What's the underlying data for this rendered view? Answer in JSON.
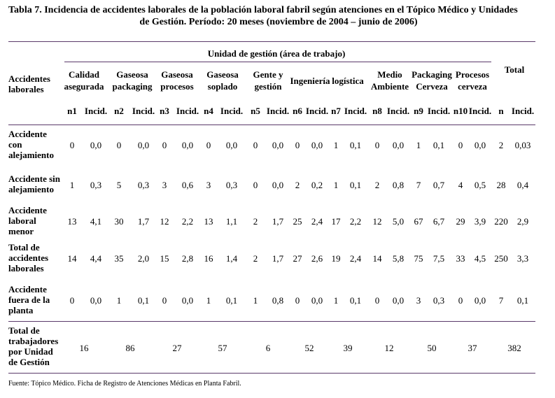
{
  "title_line1": "Tabla 7. Incidencia de accidentes laborales de la población laboral fabril según atenciones en el Tópico Médico y Unidades",
  "title_line2": "de Gestión. Período: 20 meses (noviembre de 2004 – junio de 2006)",
  "header": {
    "group_label": "Unidad de gestión (área de trabajo)",
    "row_header": [
      "Accidentes",
      "laborales"
    ],
    "total_label": "Total",
    "units": [
      [
        "Calidad",
        "asegurada"
      ],
      [
        "Gaseosa",
        "packaging"
      ],
      [
        "Gaseosa",
        "procesos"
      ],
      [
        "Gaseosa",
        "soplado"
      ],
      [
        "Gente y",
        "gestión"
      ],
      [
        "Ingeniería",
        ""
      ],
      [
        "logística",
        ""
      ],
      [
        "Medio",
        "Ambiente"
      ],
      [
        "Packaging",
        "Cerveza"
      ],
      [
        "Procesos",
        "cerveza"
      ]
    ],
    "subcols": [
      "n1",
      "Incid.",
      "n2",
      "Incid.",
      "n3",
      "Incid.",
      "n4",
      "Incid.",
      "n5",
      "Incid.",
      "n6",
      "Incid.",
      "n7",
      "Incid.",
      "n8",
      "Incid.",
      "n9",
      "Incid.",
      "n10",
      "Incid.",
      "n",
      "Incid."
    ]
  },
  "rows": [
    {
      "label": [
        "Accidente",
        "con",
        "alejamiento"
      ],
      "values": [
        "0",
        "0,0",
        "0",
        "0,0",
        "0",
        "0,0",
        "0",
        "0,0",
        "0",
        "0,0",
        "0",
        "0,0",
        "1",
        "0,1",
        "0",
        "0,0",
        "1",
        "0,1",
        "0",
        "0,0",
        "2",
        "0,03"
      ]
    },
    {
      "label": [
        "Accidente sin",
        "alejamiento"
      ],
      "values": [
        "1",
        "0,3",
        "5",
        "0,3",
        "3",
        "0,6",
        "3",
        "0,3",
        "0",
        "0,0",
        "2",
        "0,2",
        "1",
        "0,1",
        "2",
        "0,8",
        "7",
        "0,7",
        "4",
        "0,5",
        "28",
        "0,4"
      ]
    },
    {
      "label": [
        "Accidente",
        "laboral",
        "menor"
      ],
      "values": [
        "13",
        "4,1",
        "30",
        "1,7",
        "12",
        "2,2",
        "13",
        "1,1",
        "2",
        "1,7",
        "25",
        "2,4",
        "17",
        "2,2",
        "12",
        "5,0",
        "67",
        "6,7",
        "29",
        "3,9",
        "220",
        "2,9"
      ]
    },
    {
      "label": [
        "Total de",
        "accidentes",
        "laborales"
      ],
      "values": [
        "14",
        "4,4",
        "35",
        "2,0",
        "15",
        "2,8",
        "16",
        "1,4",
        "2",
        "1,7",
        "27",
        "2,6",
        "19",
        "2,4",
        "14",
        "5,8",
        "75",
        "7,5",
        "33",
        "4,5",
        "250",
        "3,3"
      ]
    },
    {
      "label": [
        "Accidente",
        "fuera de la",
        "planta"
      ],
      "values": [
        "0",
        "0,0",
        "1",
        "0,1",
        "0",
        "0,0",
        "1",
        "0,1",
        "1",
        "0,8",
        "0",
        "0,0",
        "1",
        "0,1",
        "0",
        "0,0",
        "3",
        "0,3",
        "0",
        "0,0",
        "7",
        "0,1"
      ]
    }
  ],
  "workers_row": {
    "label": [
      "Total de",
      "trabajadores",
      "por Unidad",
      "de Gestión"
    ],
    "values": [
      "16",
      "86",
      "27",
      "57",
      "6",
      "52",
      "39",
      "12",
      "50",
      "37",
      "382"
    ]
  },
  "source": "Fuente: Tópico Médico. Ficha de Registro de Atenciones Médicas en Planta Fabril."
}
